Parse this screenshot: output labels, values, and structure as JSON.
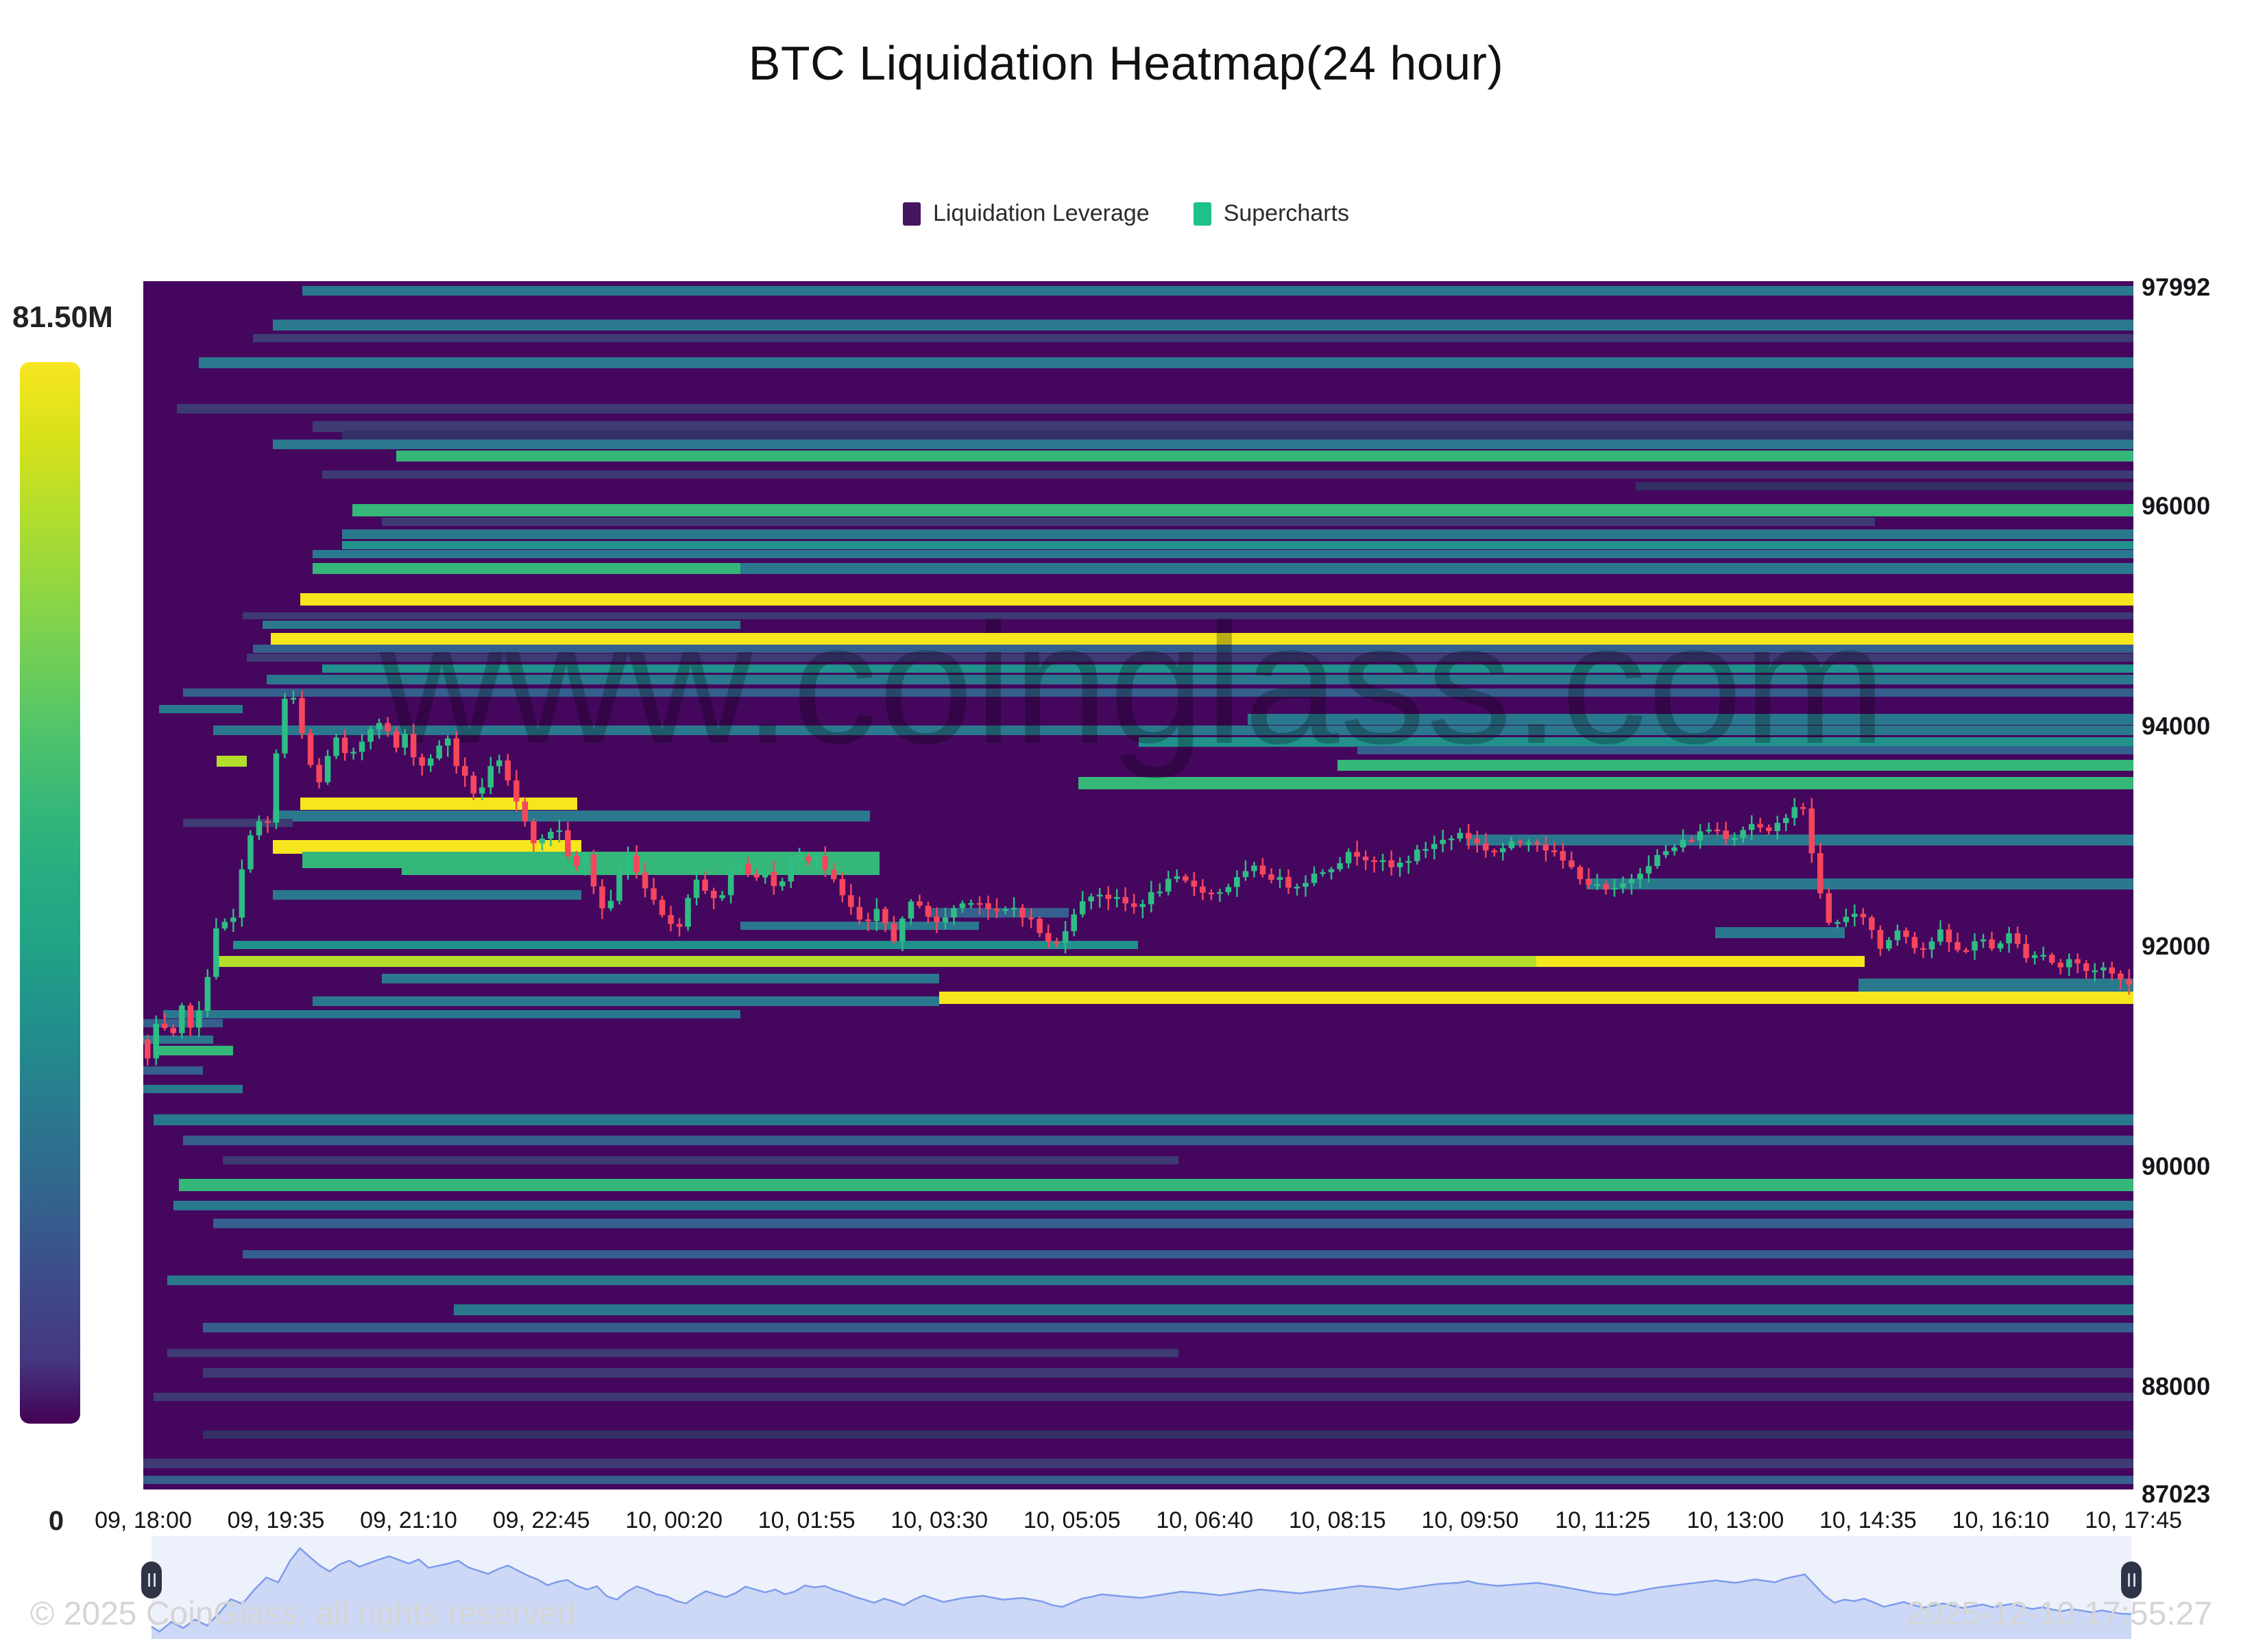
{
  "title": "BTC Liquidation Heatmap(24 hour)",
  "legend": {
    "items": [
      {
        "label": "Liquidation Leverage",
        "color": "#45155f"
      },
      {
        "label": "Supercharts",
        "color": "#20c08a"
      }
    ]
  },
  "colorbar": {
    "max_label": "81.50M",
    "min_label": "0"
  },
  "watermark": "www.coinglass.com",
  "footer": {
    "left": "© 2025 CoinGlass, all rights reserved",
    "right": "2025-12-10 17:55:27"
  },
  "chart_data": {
    "type": "heatmap",
    "title": "BTC Liquidation Heatmap(24 hour)",
    "legend_position": "top",
    "grid": false,
    "y_axis": {
      "min": 87023,
      "max": 97992,
      "ticks": [
        97992,
        96000,
        94000,
        92000,
        90000,
        88000,
        87023
      ]
    },
    "x_axis": {
      "ticks": [
        "09, 18:00",
        "09, 19:35",
        "09, 21:10",
        "09, 22:45",
        "10, 00:20",
        "10, 01:55",
        "10, 03:30",
        "10, 05:05",
        "10, 06:40",
        "10, 08:15",
        "10, 09:50",
        "10, 11:25",
        "10, 13:00",
        "10, 14:35",
        "10, 16:10",
        "10, 17:45"
      ]
    },
    "colorbar": {
      "max_value_label": "81.50M",
      "min_value_label": "0",
      "scheme": "viridis"
    },
    "palette": {
      "bg": "#45075e",
      "navy": "#3d3a74",
      "navy2": "#343066",
      "blue": "#355f8d",
      "teal": "#2a788e",
      "teal2": "#21918c",
      "green": "#35b779",
      "lgreen": "#5ec962",
      "ygreen": "#b5de2b",
      "yellow": "#f5e61d"
    },
    "candle_colors": {
      "up": "#2ebd85",
      "down": "#f6465d"
    },
    "candle_count": 232,
    "price_waypoints": [
      [
        0,
        91150
      ],
      [
        0.004,
        90950
      ],
      [
        0.01,
        91350
      ],
      [
        0.016,
        91100
      ],
      [
        0.022,
        91450
      ],
      [
        0.028,
        91200
      ],
      [
        0.034,
        91700
      ],
      [
        0.04,
        92300
      ],
      [
        0.046,
        92100
      ],
      [
        0.052,
        92700
      ],
      [
        0.058,
        93200
      ],
      [
        0.064,
        93000
      ],
      [
        0.07,
        93900
      ],
      [
        0.075,
        94420
      ],
      [
        0.08,
        94050
      ],
      [
        0.085,
        93700
      ],
      [
        0.09,
        93450
      ],
      [
        0.095,
        93750
      ],
      [
        0.1,
        93900
      ],
      [
        0.105,
        93650
      ],
      [
        0.11,
        93800
      ],
      [
        0.115,
        93950
      ],
      [
        0.12,
        94080
      ],
      [
        0.13,
        93780
      ],
      [
        0.135,
        93950
      ],
      [
        0.14,
        93600
      ],
      [
        0.15,
        93780
      ],
      [
        0.155,
        93900
      ],
      [
        0.16,
        93620
      ],
      [
        0.17,
        93350
      ],
      [
        0.175,
        93550
      ],
      [
        0.18,
        93700
      ],
      [
        0.19,
        93280
      ],
      [
        0.195,
        93120
      ],
      [
        0.2,
        92880
      ],
      [
        0.205,
        93020
      ],
      [
        0.21,
        93100
      ],
      [
        0.215,
        92850
      ],
      [
        0.22,
        92700
      ],
      [
        0.225,
        92840
      ],
      [
        0.23,
        92420
      ],
      [
        0.235,
        92280
      ],
      [
        0.24,
        92600
      ],
      [
        0.245,
        92830
      ],
      [
        0.25,
        92700
      ],
      [
        0.255,
        92500
      ],
      [
        0.26,
        92420
      ],
      [
        0.265,
        92230
      ],
      [
        0.27,
        92120
      ],
      [
        0.275,
        92400
      ],
      [
        0.28,
        92630
      ],
      [
        0.285,
        92500
      ],
      [
        0.29,
        92380
      ],
      [
        0.295,
        92550
      ],
      [
        0.3,
        92820
      ],
      [
        0.305,
        92700
      ],
      [
        0.31,
        92580
      ],
      [
        0.315,
        92700
      ],
      [
        0.32,
        92500
      ],
      [
        0.325,
        92620
      ],
      [
        0.33,
        92870
      ],
      [
        0.335,
        92790
      ],
      [
        0.34,
        92850
      ],
      [
        0.345,
        92680
      ],
      [
        0.35,
        92560
      ],
      [
        0.355,
        92400
      ],
      [
        0.36,
        92280
      ],
      [
        0.365,
        92150
      ],
      [
        0.37,
        92320
      ],
      [
        0.375,
        92200
      ],
      [
        0.38,
        92050
      ],
      [
        0.385,
        92280
      ],
      [
        0.39,
        92450
      ],
      [
        0.395,
        92320
      ],
      [
        0.4,
        92180
      ],
      [
        0.41,
        92350
      ],
      [
        0.42,
        92440
      ],
      [
        0.43,
        92280
      ],
      [
        0.44,
        92350
      ],
      [
        0.45,
        92200
      ],
      [
        0.455,
        92050
      ],
      [
        0.46,
        91980
      ],
      [
        0.465,
        92150
      ],
      [
        0.47,
        92320
      ],
      [
        0.475,
        92400
      ],
      [
        0.48,
        92500
      ],
      [
        0.49,
        92420
      ],
      [
        0.5,
        92350
      ],
      [
        0.51,
        92480
      ],
      [
        0.52,
        92610
      ],
      [
        0.53,
        92550
      ],
      [
        0.54,
        92460
      ],
      [
        0.55,
        92580
      ],
      [
        0.56,
        92700
      ],
      [
        0.57,
        92620
      ],
      [
        0.58,
        92540
      ],
      [
        0.59,
        92640
      ],
      [
        0.6,
        92740
      ],
      [
        0.61,
        92850
      ],
      [
        0.62,
        92790
      ],
      [
        0.63,
        92700
      ],
      [
        0.64,
        92820
      ],
      [
        0.65,
        92930
      ],
      [
        0.66,
        92980
      ],
      [
        0.665,
        93050
      ],
      [
        0.67,
        92950
      ],
      [
        0.68,
        92850
      ],
      [
        0.69,
        92920
      ],
      [
        0.7,
        92980
      ],
      [
        0.71,
        92850
      ],
      [
        0.72,
        92700
      ],
      [
        0.73,
        92550
      ],
      [
        0.74,
        92480
      ],
      [
        0.75,
        92620
      ],
      [
        0.76,
        92780
      ],
      [
        0.77,
        92880
      ],
      [
        0.78,
        92980
      ],
      [
        0.79,
        93080
      ],
      [
        0.8,
        92980
      ],
      [
        0.81,
        93120
      ],
      [
        0.82,
        93000
      ],
      [
        0.825,
        93150
      ],
      [
        0.835,
        93330
      ],
      [
        0.84,
        92900
      ],
      [
        0.845,
        92450
      ],
      [
        0.85,
        92150
      ],
      [
        0.855,
        92280
      ],
      [
        0.86,
        92220
      ],
      [
        0.865,
        92320
      ],
      [
        0.87,
        92160
      ],
      [
        0.875,
        91980
      ],
      [
        0.88,
        92080
      ],
      [
        0.885,
        92180
      ],
      [
        0.89,
        92050
      ],
      [
        0.895,
        91950
      ],
      [
        0.9,
        92030
      ],
      [
        0.905,
        92120
      ],
      [
        0.91,
        92020
      ],
      [
        0.915,
        91930
      ],
      [
        0.92,
        92010
      ],
      [
        0.925,
        92080
      ],
      [
        0.93,
        91960
      ],
      [
        0.935,
        92040
      ],
      [
        0.94,
        92100
      ],
      [
        0.945,
        91980
      ],
      [
        0.95,
        91890
      ],
      [
        0.955,
        91960
      ],
      [
        0.96,
        91870
      ],
      [
        0.965,
        91800
      ],
      [
        0.97,
        91880
      ],
      [
        0.975,
        91820
      ],
      [
        0.98,
        91750
      ],
      [
        0.985,
        91830
      ],
      [
        0.99,
        91760
      ],
      [
        0.995,
        91690
      ],
      [
        1,
        91680
      ]
    ],
    "liquidation_bands": [
      [
        97950,
        0.08,
        1,
        "teal",
        14
      ],
      [
        97640,
        0.065,
        1,
        "teal",
        16
      ],
      [
        97520,
        0.055,
        1,
        "navy",
        12
      ],
      [
        97300,
        0.028,
        1,
        "teal",
        16
      ],
      [
        96880,
        0.017,
        1,
        "navy",
        14
      ],
      [
        96720,
        0.085,
        1,
        "navy",
        16
      ],
      [
        96640,
        0.1,
        1,
        "navy2",
        14
      ],
      [
        96560,
        0.065,
        1,
        "teal",
        14
      ],
      [
        96450,
        0.127,
        1,
        "green",
        16
      ],
      [
        96280,
        0.09,
        1,
        "navy",
        12
      ],
      [
        96180,
        0.75,
        1,
        "navy2",
        12
      ],
      [
        95960,
        0.105,
        1,
        "green",
        18
      ],
      [
        95850,
        0.12,
        0.87,
        "navy",
        12
      ],
      [
        95740,
        0.1,
        1,
        "teal",
        14
      ],
      [
        95640,
        0.1,
        1,
        "teal2",
        12
      ],
      [
        95560,
        0.085,
        1,
        "teal",
        12
      ],
      [
        95430,
        0.085,
        1,
        "teal",
        16
      ],
      [
        95430,
        0.085,
        0.3,
        "green",
        16
      ],
      [
        95150,
        0.079,
        1,
        "yellow",
        18
      ],
      [
        95000,
        0.05,
        1,
        "navy",
        10
      ],
      [
        94920,
        0.06,
        0.3,
        "teal",
        12
      ],
      [
        94780,
        0.064,
        1,
        "yellow",
        20
      ],
      [
        94700,
        0.055,
        1,
        "blue",
        12
      ],
      [
        94620,
        0.052,
        1,
        "navy",
        12
      ],
      [
        94520,
        0.09,
        1,
        "teal2",
        12
      ],
      [
        94420,
        0.062,
        1,
        "teal",
        14
      ],
      [
        94300,
        0.02,
        1,
        "blue",
        12
      ],
      [
        94150,
        0.008,
        0.05,
        "teal",
        12
      ],
      [
        94060,
        0.555,
        1,
        "teal",
        16
      ],
      [
        93960,
        0.035,
        1,
        "teal",
        14
      ],
      [
        93850,
        0.5,
        1,
        "teal2",
        14
      ],
      [
        93780,
        0.61,
        1,
        "blue",
        12
      ],
      [
        93680,
        0.037,
        0.052,
        "ygreen",
        16
      ],
      [
        93640,
        0.6,
        1,
        "green",
        16
      ],
      [
        93480,
        0.47,
        1,
        "green",
        18
      ],
      [
        93290,
        0.079,
        0.218,
        "yellow",
        18
      ],
      [
        93180,
        0.065,
        0.365,
        "teal",
        16
      ],
      [
        93120,
        0.02,
        0.075,
        "navy",
        12
      ],
      [
        92960,
        0.665,
        1,
        "teal",
        16
      ],
      [
        92900,
        0.065,
        0.22,
        "yellow",
        20
      ],
      [
        92780,
        0.08,
        0.37,
        "green",
        24
      ],
      [
        92700,
        0.13,
        0.37,
        "green",
        18
      ],
      [
        92560,
        0.725,
        1,
        "teal",
        16
      ],
      [
        92460,
        0.065,
        0.22,
        "teal",
        14
      ],
      [
        92300,
        0.395,
        0.465,
        "blue",
        14
      ],
      [
        92180,
        0.3,
        0.42,
        "teal",
        12
      ],
      [
        92120,
        0.79,
        0.855,
        "teal",
        16
      ],
      [
        92010,
        0.045,
        0.5,
        "teal2",
        12
      ],
      [
        91860,
        0.037,
        0.7,
        "ygreen",
        16
      ],
      [
        91860,
        0.7,
        0.865,
        "yellow",
        16
      ],
      [
        91700,
        0.12,
        0.4,
        "teal",
        14
      ],
      [
        91640,
        0.862,
        1,
        "teal",
        20
      ],
      [
        91530,
        0.4,
        1,
        "yellow",
        18
      ],
      [
        91500,
        0.085,
        0.4,
        "teal",
        14
      ],
      [
        91380,
        0.01,
        0.3,
        "teal",
        12
      ],
      [
        91300,
        0,
        0.04,
        "blue",
        12
      ],
      [
        91150,
        0,
        0.035,
        "teal",
        12
      ],
      [
        91050,
        0.005,
        0.045,
        "green",
        14
      ],
      [
        90870,
        0,
        0.03,
        "blue",
        12
      ],
      [
        90700,
        0,
        0.05,
        "teal",
        12
      ],
      [
        90420,
        0.005,
        1,
        "teal",
        16
      ],
      [
        90230,
        0.02,
        1,
        "blue",
        14
      ],
      [
        90050,
        0.04,
        0.52,
        "navy",
        12
      ],
      [
        89830,
        0.018,
        1,
        "green",
        18
      ],
      [
        89640,
        0.015,
        1,
        "teal",
        14
      ],
      [
        89480,
        0.035,
        1,
        "blue",
        14
      ],
      [
        89200,
        0.05,
        1,
        "blue",
        12
      ],
      [
        88960,
        0.012,
        1,
        "teal",
        14
      ],
      [
        88690,
        0.156,
        1,
        "teal",
        16
      ],
      [
        88530,
        0.03,
        1,
        "blue",
        14
      ],
      [
        88300,
        0.012,
        0.52,
        "navy",
        12
      ],
      [
        88120,
        0.03,
        1,
        "navy",
        14
      ],
      [
        87900,
        0.005,
        1,
        "navy",
        12
      ],
      [
        87560,
        0.03,
        1,
        "navy2",
        12
      ],
      [
        87300,
        0,
        1,
        "navy",
        14
      ],
      [
        87150,
        0,
        1,
        "blue",
        12
      ]
    ],
    "navigator": {
      "price_min": 90700,
      "price_max": 94750,
      "selection": [
        0,
        1
      ]
    }
  }
}
